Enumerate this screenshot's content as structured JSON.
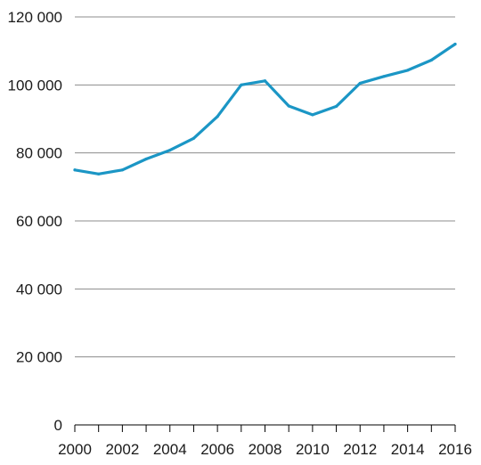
{
  "chart_data": {
    "type": "line",
    "title": "",
    "xlabel": "",
    "ylabel": "",
    "x": [
      2000,
      2001,
      2002,
      2003,
      2004,
      2005,
      2006,
      2007,
      2008,
      2009,
      2010,
      2011,
      2012,
      2013,
      2014,
      2015,
      2016
    ],
    "series": [
      {
        "values": [
          75000,
          73800,
          75000,
          78200,
          80800,
          84300,
          90700,
          100000,
          101200,
          93800,
          91200,
          93700,
          100500,
          102500,
          104300,
          107300,
          112000
        ],
        "color": "#1b96c5"
      }
    ],
    "ylim": [
      0,
      120000
    ],
    "xlim": [
      2000,
      2016
    ],
    "y_ticks": [
      0,
      20000,
      40000,
      60000,
      80000,
      100000,
      120000
    ],
    "y_tick_labels": [
      "0",
      "20 000",
      "40 000",
      "60 000",
      "80 000",
      "100 000",
      "120 000"
    ],
    "x_tick_labels": [
      "2000",
      "2002",
      "2004",
      "2006",
      "2008",
      "2010",
      "2012",
      "2014",
      "2016"
    ],
    "grid": true,
    "legend": "none"
  }
}
